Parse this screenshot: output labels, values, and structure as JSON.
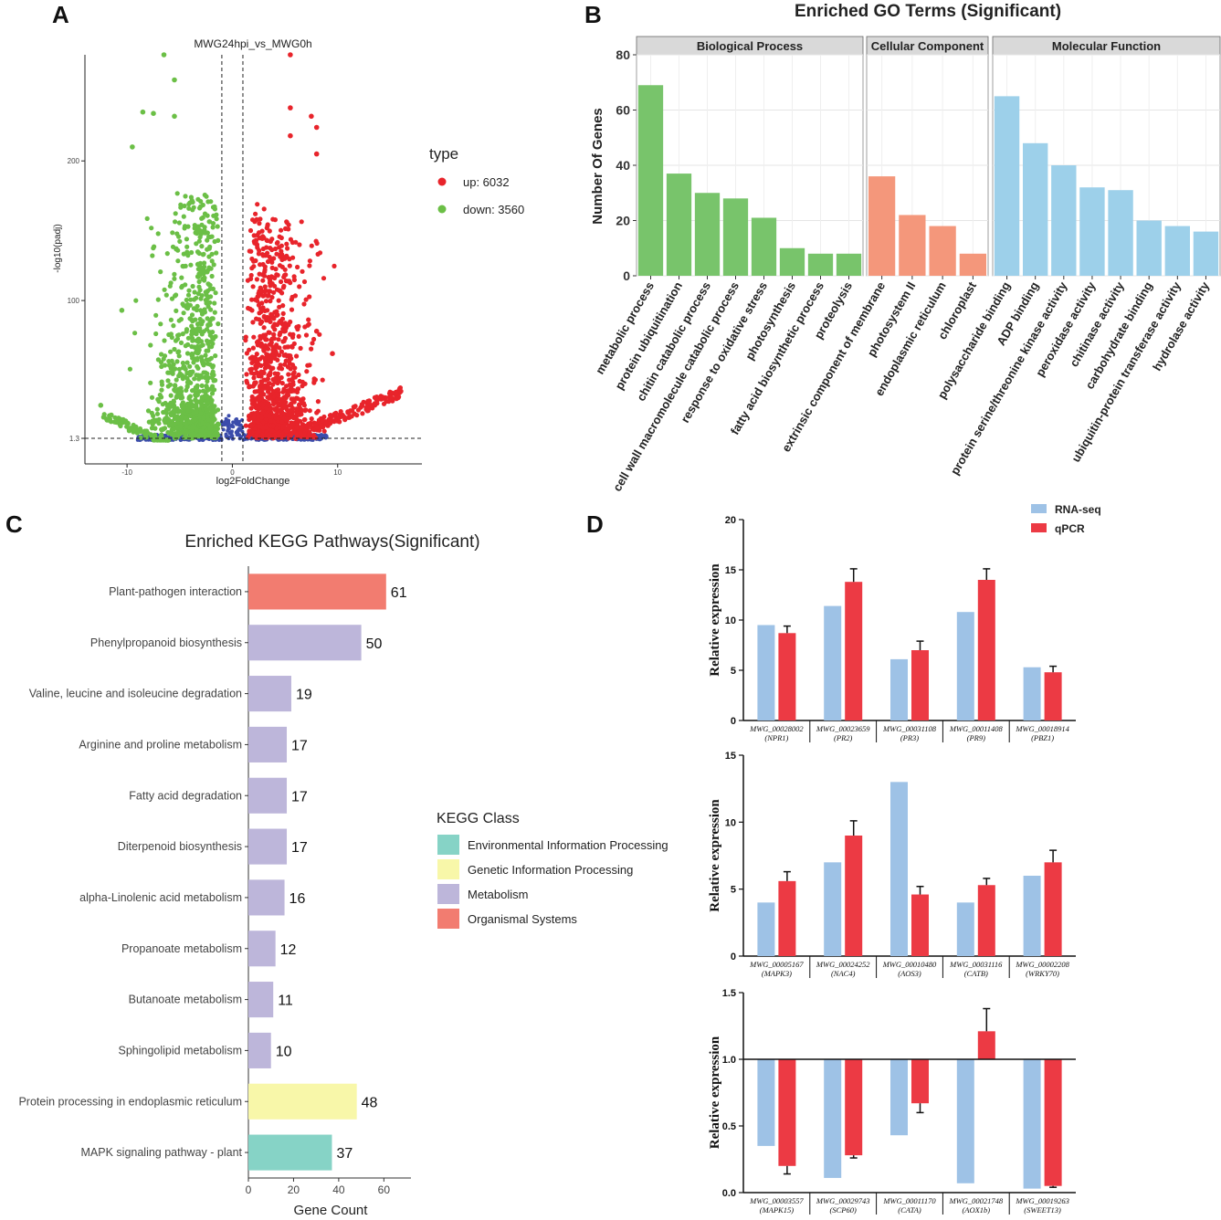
{
  "panels": {
    "a": "A",
    "b": "B",
    "c": "C",
    "d": "D"
  },
  "colors": {
    "up": "#e8242b",
    "down": "#6bbf46",
    "ns": "#3b4cab",
    "bp": "#78c46b",
    "cc": "#f4977b",
    "mf": "#9dd0ea",
    "env": "#86d3c6",
    "gen": "#f8f7a9",
    "met": "#bdb6da",
    "org": "#f27c70",
    "rnaseq": "#9ec2e6",
    "qpcr": "#ec3a44"
  },
  "chart_data": [
    {
      "id": "volcano",
      "type": "scatter",
      "title": "MWG24hpi_vs_MWG0h",
      "xlabel": "log2FoldChange",
      "ylabel": "-log10(padj)",
      "xlim": [
        -14,
        18
      ],
      "ylim": [
        -17,
        276
      ],
      "xticks": [
        "-10",
        "0",
        "10"
      ],
      "yticks": [
        "1.3",
        "100",
        "200"
      ],
      "thresholds": {
        "log2fc": [
          -1,
          1
        ],
        "padj_line": 1.3
      },
      "legend_title": "type",
      "legend": [
        {
          "label": "up: 6032",
          "key": "up"
        },
        {
          "label": "down: 3560",
          "key": "down"
        }
      ],
      "series": [
        {
          "name": "up",
          "count": 6032
        },
        {
          "name": "down",
          "count": 3560
        }
      ],
      "notable_points": [
        {
          "x": 16,
          "y": 35,
          "type": "up"
        },
        {
          "x": 13,
          "y": 28,
          "type": "up"
        },
        {
          "x": 8,
          "y": 78,
          "type": "up"
        },
        {
          "x": 9.5,
          "y": 62,
          "type": "up"
        },
        {
          "x": 5.5,
          "y": 276,
          "type": "up"
        },
        {
          "x": 5.5,
          "y": 238,
          "type": "up"
        },
        {
          "x": 7.5,
          "y": 232,
          "type": "up"
        },
        {
          "x": 8,
          "y": 224,
          "type": "up"
        },
        {
          "x": 8,
          "y": 205,
          "type": "up"
        },
        {
          "x": 5.5,
          "y": 218,
          "type": "up"
        },
        {
          "x": -6.5,
          "y": 276,
          "type": "down"
        },
        {
          "x": -5.5,
          "y": 258,
          "type": "down"
        },
        {
          "x": -8.5,
          "y": 235,
          "type": "down"
        },
        {
          "x": -7.5,
          "y": 234,
          "type": "down"
        },
        {
          "x": -5.5,
          "y": 232,
          "type": "down"
        },
        {
          "x": -9.5,
          "y": 210,
          "type": "down"
        },
        {
          "x": -10.5,
          "y": 93,
          "type": "down"
        },
        {
          "x": -12.5,
          "y": 25,
          "type": "down"
        },
        {
          "x": -11.5,
          "y": 18,
          "type": "down"
        }
      ]
    },
    {
      "id": "go",
      "type": "bar",
      "title": "Enriched GO Terms (Significant)",
      "ylabel": "Number Of Genes",
      "ylim": [
        0,
        80
      ],
      "yticks": [
        "0",
        "20",
        "40",
        "60",
        "80"
      ],
      "facets": [
        {
          "name": "Biological Process",
          "key": "bp",
          "categories": [
            "metabolic process",
            "protein ubiquitination",
            "chitin catabolic process",
            "cell wall macromolecule catabolic process",
            "response to oxidative stress",
            "photosynthesis",
            "fatty acid biosynthetic process",
            "proteolysis"
          ],
          "values": [
            69,
            37,
            30,
            28,
            21,
            10,
            8,
            8
          ]
        },
        {
          "name": "Cellular Component",
          "key": "cc",
          "categories": [
            "extrinsic component of membrane",
            "photosystem II",
            "endoplasmic reticulum",
            "chloroplast"
          ],
          "values": [
            36,
            22,
            18,
            8
          ]
        },
        {
          "name": "Molecular Function",
          "key": "mf",
          "categories": [
            "polysaccharide binding",
            "ADP binding",
            "protein serine/threonine kinase activity",
            "peroxidase activity",
            "chitinase activity",
            "carbohydrate binding",
            "ubiquitin-protein transferase activity",
            "hydrolase activity"
          ],
          "values": [
            65,
            48,
            40,
            32,
            31,
            20,
            18,
            16
          ]
        }
      ]
    },
    {
      "id": "kegg",
      "type": "bar",
      "orientation": "horizontal",
      "title": "Enriched KEGG Pathways(Significant)",
      "xlabel": "Gene Count",
      "xlim": [
        0,
        72
      ],
      "xticks": [
        "0",
        "20",
        "40",
        "60"
      ],
      "categories": [
        "Plant-pathogen interaction",
        "Phenylpropanoid biosynthesis",
        "Valine, leucine and isoleucine degradation",
        "Arginine and proline metabolism",
        "Fatty acid degradation",
        "Diterpenoid biosynthesis",
        "alpha-Linolenic acid metabolism",
        "Propanoate metabolism",
        "Butanoate metabolism",
        "Sphingolipid metabolism",
        "Protein processing in endoplasmic reticulum",
        "MAPK signaling pathway - plant"
      ],
      "values": [
        61,
        50,
        19,
        17,
        17,
        17,
        16,
        12,
        11,
        10,
        48,
        37
      ],
      "classes": [
        "org",
        "met",
        "met",
        "met",
        "met",
        "met",
        "met",
        "met",
        "met",
        "met",
        "gen",
        "env"
      ],
      "legend_title": "KEGG Class",
      "legend": [
        {
          "label": "Environmental Information Processing",
          "key": "env"
        },
        {
          "label": "Genetic Information Processing",
          "key": "gen"
        },
        {
          "label": "Metabolism",
          "key": "met"
        },
        {
          "label": "Organismal Systems",
          "key": "org"
        }
      ]
    },
    {
      "id": "qpcr",
      "type": "bar",
      "legend": [
        {
          "label": "RNA-seq",
          "key": "rnaseq"
        },
        {
          "label": "qPCR",
          "key": "qpcr"
        }
      ],
      "ylabel": "Relative expression",
      "subplots": [
        {
          "ylim": [
            0,
            20
          ],
          "yticks": [
            "0",
            "5",
            "10",
            "15",
            "20"
          ],
          "baseline": 0,
          "genes": [
            {
              "id": "MWG_00028002",
              "name": "(NPR1)",
              "rnaseq": 9.5,
              "qpcr": 8.7,
              "err": 0.7
            },
            {
              "id": "MWG_00023659",
              "name": "(PR2)",
              "rnaseq": 11.4,
              "qpcr": 13.8,
              "err": 1.3
            },
            {
              "id": "MWG_00031108",
              "name": "(PR3)",
              "rnaseq": 6.1,
              "qpcr": 7.0,
              "err": 0.9
            },
            {
              "id": "MWG_00011408",
              "name": "(PR9)",
              "rnaseq": 10.8,
              "qpcr": 14.0,
              "err": 1.1
            },
            {
              "id": "MWG_00018914",
              "name": "(PBZ1)",
              "rnaseq": 5.3,
              "qpcr": 4.8,
              "err": 0.6
            }
          ]
        },
        {
          "ylim": [
            0,
            15
          ],
          "yticks": [
            "0",
            "5",
            "10",
            "15"
          ],
          "baseline": 0,
          "genes": [
            {
              "id": "MWG_00005167",
              "name": "(MAPK3)",
              "rnaseq": 4.0,
              "qpcr": 5.6,
              "err": 0.7
            },
            {
              "id": "MWG_00024252",
              "name": "(NAC4)",
              "rnaseq": 7.0,
              "qpcr": 9.0,
              "err": 1.1
            },
            {
              "id": "MWG_00010480",
              "name": "(AOS3)",
              "rnaseq": 13.0,
              "qpcr": 4.6,
              "err": 0.6
            },
            {
              "id": "MWG_00031116",
              "name": "(CATB)",
              "rnaseq": 4.0,
              "qpcr": 5.3,
              "err": 0.5
            },
            {
              "id": "MWG_00002208",
              "name": "(WRKY70)",
              "rnaseq": 6.0,
              "qpcr": 7.0,
              "err": 0.9
            }
          ]
        },
        {
          "ylim": [
            0,
            1.5
          ],
          "yticks": [
            "0.0",
            "0.5",
            "1.0",
            "1.5"
          ],
          "baseline": 1.0,
          "genes": [
            {
              "id": "MWG_00003557",
              "name": "(MAPK15)",
              "rnaseq": 0.35,
              "qpcr": 0.2,
              "err": 0.06
            },
            {
              "id": "MWG_00029743",
              "name": "(SCP60)",
              "rnaseq": 0.11,
              "qpcr": 0.28,
              "err": 0.02
            },
            {
              "id": "MWG_00011170",
              "name": "(CATA)",
              "rnaseq": 0.43,
              "qpcr": 0.67,
              "err": 0.07
            },
            {
              "id": "MWG_00021748",
              "name": "(AOX1b)",
              "rnaseq": 0.07,
              "qpcr": 1.21,
              "err": 0.17
            },
            {
              "id": "MWG_00019263",
              "name": "(SWEET13)",
              "rnaseq": 0.03,
              "qpcr": 0.05,
              "err": 0.01
            }
          ]
        }
      ]
    }
  ]
}
